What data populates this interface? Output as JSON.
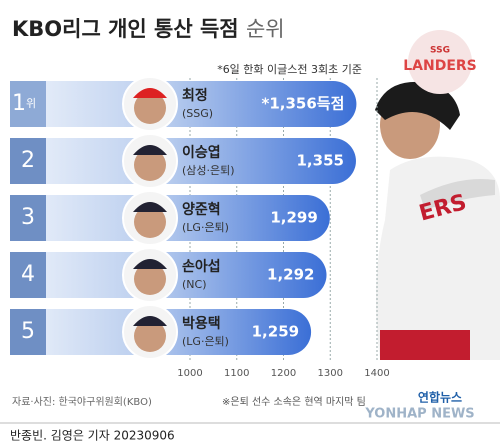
{
  "chart_data": {
    "type": "bar",
    "orientation": "horizontal",
    "title": "KBO리그 개인 통산 득점",
    "title_suffix": "순위",
    "subtitle": "*6일 한화 이글스전 3회초 기준",
    "ranks": [
      "1",
      "2",
      "3",
      "4",
      "5"
    ],
    "rank_suffix": "위",
    "categories": [
      "최정",
      "이승엽",
      "양준혁",
      "손아섭",
      "박용택"
    ],
    "teams": [
      "(SSG)",
      "(삼성·은퇴)",
      "(LG·은퇴)",
      "(NC)",
      "(LG·은퇴)"
    ],
    "values": [
      1356,
      1355,
      1299,
      1292,
      1259
    ],
    "value_labels": [
      "*1,356득점",
      "1,355",
      "1,299",
      "1,292",
      "1,259"
    ],
    "color": "#3b6fd6",
    "xlim": [
      1000,
      1400
    ],
    "xticks": [
      1000,
      1100,
      1200,
      1300,
      1400
    ],
    "grid": true,
    "logo": {
      "top": "SSG",
      "name": "LANDERS"
    },
    "source": "자료·사진: 한국야구위원회(KBO)",
    "note": "※은퇴 선수 소속은 현역 마지막 팀",
    "credit": "반종빈. 김영은 기자 20230906",
    "agency": "연합뉴스",
    "agency_en": "YONHAP NEWS"
  }
}
